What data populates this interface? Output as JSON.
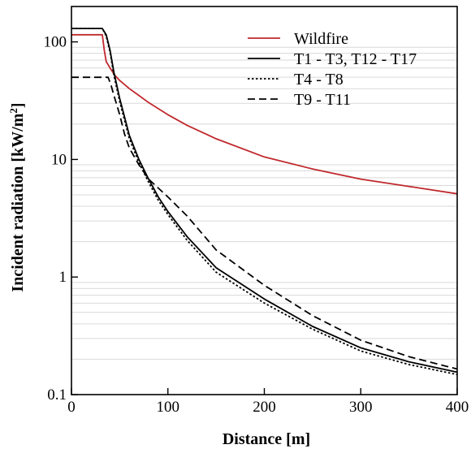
{
  "chart_data": {
    "type": "line",
    "xlabel": "Distance [m]",
    "ylabel_main": "Incident radiation [kW/m",
    "ylabel_sup": "2",
    "ylabel_end": "]",
    "xlim": [
      0,
      400
    ],
    "ylim": [
      0.1,
      200
    ],
    "yscale": "log",
    "x_ticks": [
      0,
      100,
      200,
      300,
      400
    ],
    "y_ticks": [
      0.1,
      1,
      10,
      100
    ],
    "x_tick_labels": [
      "0",
      "100",
      "200",
      "300",
      "400"
    ],
    "y_tick_labels": [
      "0.1",
      "1",
      "10",
      "100"
    ],
    "minor_gridlines": true,
    "legend_position": "top-right",
    "series": [
      {
        "name": "Wildfire",
        "color": "#c0282d",
        "dash": "solid",
        "points": [
          [
            0,
            115
          ],
          [
            32,
            115
          ],
          [
            34,
            85
          ],
          [
            36,
            68
          ],
          [
            40,
            60
          ],
          [
            45,
            52
          ],
          [
            50,
            47
          ],
          [
            60,
            40
          ],
          [
            70,
            35
          ],
          [
            80,
            30.5
          ],
          [
            100,
            24
          ],
          [
            120,
            19.5
          ],
          [
            150,
            15
          ],
          [
            200,
            10.5
          ],
          [
            250,
            8.3
          ],
          [
            300,
            6.8
          ],
          [
            350,
            5.9
          ],
          [
            400,
            5.1
          ]
        ]
      },
      {
        "name": "T1 - T3, T12 - T17",
        "color": "#000000",
        "dash": "solid",
        "points": [
          [
            0,
            130
          ],
          [
            32,
            130
          ],
          [
            36,
            115
          ],
          [
            40,
            85
          ],
          [
            44,
            55
          ],
          [
            50,
            33
          ],
          [
            60,
            16
          ],
          [
            70,
            10
          ],
          [
            80,
            6.8
          ],
          [
            90,
            4.8
          ],
          [
            100,
            3.6
          ],
          [
            120,
            2.2
          ],
          [
            150,
            1.2
          ],
          [
            200,
            0.65
          ],
          [
            250,
            0.38
          ],
          [
            300,
            0.25
          ],
          [
            350,
            0.19
          ],
          [
            400,
            0.155
          ]
        ]
      },
      {
        "name": "T4 - T8",
        "color": "#000000",
        "dash": "dotted",
        "points": [
          [
            0,
            130
          ],
          [
            32,
            130
          ],
          [
            36,
            112
          ],
          [
            40,
            82
          ],
          [
            44,
            52
          ],
          [
            50,
            31
          ],
          [
            60,
            15
          ],
          [
            70,
            9.4
          ],
          [
            80,
            6.4
          ],
          [
            90,
            4.5
          ],
          [
            100,
            3.4
          ],
          [
            120,
            2.05
          ],
          [
            150,
            1.1
          ],
          [
            200,
            0.6
          ],
          [
            250,
            0.36
          ],
          [
            300,
            0.235
          ],
          [
            350,
            0.18
          ],
          [
            400,
            0.148
          ]
        ]
      },
      {
        "name": "T9 - T11",
        "color": "#000000",
        "dash": "dashed",
        "points": [
          [
            0,
            50
          ],
          [
            38,
            50
          ],
          [
            41,
            43
          ],
          [
            44,
            35
          ],
          [
            50,
            24
          ],
          [
            55,
            16.5
          ],
          [
            60,
            12.5
          ],
          [
            70,
            9
          ],
          [
            80,
            6.8
          ],
          [
            100,
            4.8
          ],
          [
            120,
            3.3
          ],
          [
            150,
            1.7
          ],
          [
            200,
            0.85
          ],
          [
            250,
            0.47
          ],
          [
            300,
            0.29
          ],
          [
            350,
            0.21
          ],
          [
            400,
            0.165
          ]
        ]
      }
    ]
  }
}
